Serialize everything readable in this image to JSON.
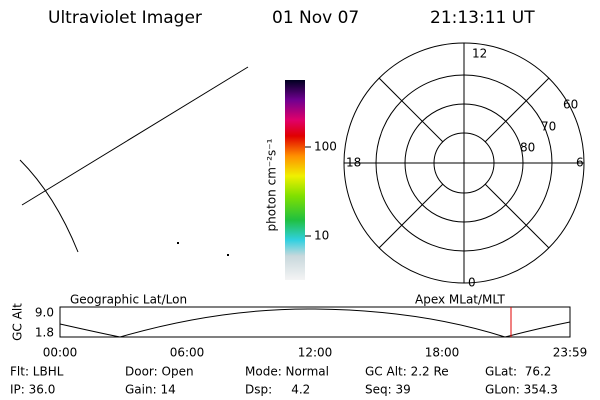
{
  "header": {
    "title": "Ultraviolet Imager",
    "date": "01 Nov 07",
    "time": "21:13:11 UT"
  },
  "colorbar": {
    "label": "photon cm⁻²s⁻¹",
    "ticks": [
      "100",
      "10"
    ]
  },
  "polar": {
    "mlt_labels": [
      "12",
      "6",
      "0",
      "18"
    ],
    "lat_labels": [
      "60",
      "70",
      "80"
    ]
  },
  "alt_plot": {
    "left_title": "Geographic Lat/Lon",
    "right_title": "Apex MLat/MLT",
    "ylabel": "GC Alt",
    "yticks": [
      "9.0",
      "1.8"
    ],
    "xticks": [
      "00:00",
      "06:00",
      "12:00",
      "18:00",
      "23:59"
    ]
  },
  "info": {
    "rows": [
      [
        "Flt: LBHL",
        "Door: Open",
        "Mode: Normal",
        "GC Alt: 2.2 Re",
        "GLat:  76.2"
      ],
      [
        "IP: 36.0",
        "Gain: 14",
        "Dsp:     4.2",
        "Seq: 39",
        "GLon: 354.3"
      ]
    ]
  }
}
